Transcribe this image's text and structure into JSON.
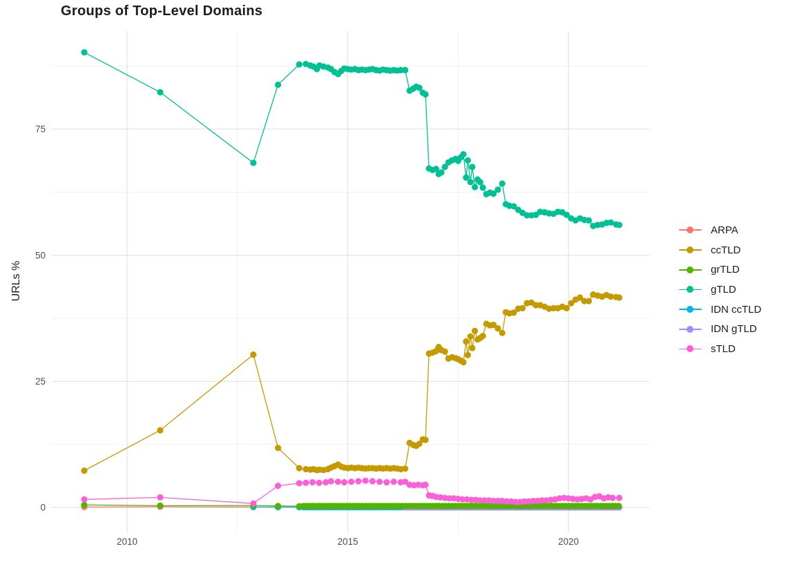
{
  "chart_data": {
    "type": "line",
    "title": "Groups of Top-Level Domains",
    "xlabel": "",
    "ylabel": "URLs %",
    "x_axis": {
      "major_ticks": [
        2010,
        2015,
        2020
      ],
      "minor_ticks": [
        2012.5,
        2017.5
      ],
      "range": [
        2008.3,
        2021.9
      ]
    },
    "y_axis": {
      "major_ticks": [
        0,
        25,
        50,
        75
      ],
      "minor_ticks": [
        12.5,
        37.5,
        62.5,
        87.5
      ],
      "range": [
        -4.5,
        94.5
      ]
    },
    "grid": true,
    "legend_position": "right",
    "colors": {
      "grid_major": "#e3e3e3",
      "grid_minor": "#efefef",
      "tick_label": "#4d4d4d",
      "text": "#1c1c1c"
    },
    "legend": [
      {
        "label": "ARPA",
        "color": "#F8766D"
      },
      {
        "label": "ccTLD",
        "color": "#C49A00"
      },
      {
        "label": "grTLD",
        "color": "#53B400"
      },
      {
        "label": "gTLD",
        "color": "#00C094"
      },
      {
        "label": "IDN ccTLD",
        "color": "#00B6EB"
      },
      {
        "label": "IDN gTLD",
        "color": "#A58AFF"
      },
      {
        "label": "sTLD",
        "color": "#FB61D7"
      }
    ],
    "series": [
      {
        "id": "arpa",
        "name": "ARPA",
        "color": "#F8766D",
        "points": [
          [
            2009.03,
            0.1
          ],
          [
            2010.75,
            0.15
          ],
          [
            2012.86,
            0.1
          ],
          [
            2013.42,
            0.07
          ]
        ],
        "flat_runs": [
          {
            "from": 2014.0,
            "to": 2021.15,
            "step": 0.07,
            "y": 0.05
          }
        ]
      },
      {
        "id": "idn-cctld",
        "name": "IDN ccTLD",
        "color": "#00B6EB",
        "points": [
          [
            2012.86,
            0.1
          ],
          [
            2013.42,
            0.08
          ],
          [
            2013.9,
            0.06
          ]
        ],
        "flat_runs": [
          {
            "from": 2014.0,
            "to": 2021.15,
            "step": 0.07,
            "y": 0.07
          }
        ]
      },
      {
        "id": "idn-gtld",
        "name": "IDN gTLD",
        "color": "#A58AFF",
        "points": [],
        "flat_runs": [
          {
            "from": 2016.3,
            "to": 2021.15,
            "step": 0.05,
            "y": 0.02
          }
        ]
      },
      {
        "id": "grtld",
        "name": "grTLD",
        "color": "#53B400",
        "points": [
          [
            2009.03,
            0.5
          ],
          [
            2010.75,
            0.35
          ],
          [
            2012.86,
            0.4
          ],
          [
            2013.42,
            0.3
          ],
          [
            2013.9,
            0.25
          ]
        ],
        "flat_runs": [
          {
            "from": 2014.0,
            "to": 2021.15,
            "step": 0.07,
            "y": 0.3
          }
        ]
      },
      {
        "id": "gtld",
        "name": "gTLD",
        "color": "#00C094",
        "points": [
          [
            2009.03,
            90.2
          ],
          [
            2010.75,
            82.3
          ],
          [
            2012.86,
            68.3
          ],
          [
            2013.42,
            83.8
          ],
          [
            2013.9,
            87.8
          ],
          [
            2014.05,
            87.9
          ],
          [
            2014.15,
            87.6
          ],
          [
            2014.22,
            87.4
          ],
          [
            2014.3,
            86.9
          ],
          [
            2014.36,
            87.6
          ],
          [
            2014.45,
            87.4
          ],
          [
            2014.55,
            87.2
          ],
          [
            2014.62,
            86.9
          ],
          [
            2014.7,
            86.3
          ],
          [
            2014.78,
            85.9
          ],
          [
            2014.85,
            86.5
          ],
          [
            2014.92,
            87.0
          ],
          [
            2015.0,
            86.9
          ],
          [
            2015.08,
            86.8
          ],
          [
            2015.16,
            86.9
          ],
          [
            2015.24,
            86.7
          ],
          [
            2015.32,
            86.8
          ],
          [
            2015.4,
            86.7
          ],
          [
            2015.48,
            86.8
          ],
          [
            2015.56,
            86.9
          ],
          [
            2015.64,
            86.7
          ],
          [
            2015.72,
            86.6
          ],
          [
            2015.8,
            86.8
          ],
          [
            2015.88,
            86.7
          ],
          [
            2015.96,
            86.6
          ],
          [
            2016.04,
            86.7
          ],
          [
            2016.12,
            86.6
          ],
          [
            2016.2,
            86.7
          ],
          [
            2016.3,
            86.7
          ],
          [
            2016.4,
            82.6
          ],
          [
            2016.48,
            83.0
          ],
          [
            2016.55,
            83.4
          ],
          [
            2016.62,
            83.2
          ],
          [
            2016.7,
            82.2
          ],
          [
            2016.76,
            81.9
          ],
          [
            2016.84,
            67.2
          ],
          [
            2016.92,
            66.9
          ],
          [
            2017.0,
            67.1
          ],
          [
            2017.06,
            66.1
          ],
          [
            2017.12,
            66.4
          ],
          [
            2017.2,
            67.5
          ],
          [
            2017.28,
            68.4
          ],
          [
            2017.36,
            68.8
          ],
          [
            2017.44,
            69.1
          ],
          [
            2017.5,
            68.7
          ],
          [
            2017.56,
            69.4
          ],
          [
            2017.62,
            70.0
          ],
          [
            2017.68,
            65.4
          ],
          [
            2017.72,
            68.8
          ],
          [
            2017.78,
            64.5
          ],
          [
            2017.82,
            67.5
          ],
          [
            2017.88,
            63.5
          ],
          [
            2017.94,
            65.0
          ],
          [
            2018.0,
            64.5
          ],
          [
            2018.06,
            63.4
          ],
          [
            2018.14,
            62.1
          ],
          [
            2018.22,
            62.4
          ],
          [
            2018.3,
            62.2
          ],
          [
            2018.4,
            63.0
          ],
          [
            2018.5,
            64.2
          ],
          [
            2018.58,
            60.1
          ],
          [
            2018.66,
            59.8
          ],
          [
            2018.76,
            59.7
          ],
          [
            2018.86,
            59.0
          ],
          [
            2018.96,
            58.4
          ],
          [
            2019.06,
            57.9
          ],
          [
            2019.16,
            57.9
          ],
          [
            2019.26,
            58.0
          ],
          [
            2019.36,
            58.6
          ],
          [
            2019.46,
            58.5
          ],
          [
            2019.56,
            58.3
          ],
          [
            2019.66,
            58.2
          ],
          [
            2019.76,
            58.6
          ],
          [
            2019.86,
            58.5
          ],
          [
            2019.96,
            58.0
          ],
          [
            2020.06,
            57.3
          ],
          [
            2020.16,
            56.9
          ],
          [
            2020.26,
            57.3
          ],
          [
            2020.36,
            57.0
          ],
          [
            2020.46,
            56.9
          ],
          [
            2020.56,
            55.8
          ],
          [
            2020.66,
            56.0
          ],
          [
            2020.76,
            56.1
          ],
          [
            2020.86,
            56.4
          ],
          [
            2020.96,
            56.5
          ],
          [
            2021.08,
            56.1
          ],
          [
            2021.15,
            56.0
          ]
        ]
      },
      {
        "id": "cctld",
        "name": "ccTLD",
        "color": "#C49A00",
        "points": [
          [
            2009.03,
            7.3
          ],
          [
            2010.75,
            15.3
          ],
          [
            2012.86,
            30.3
          ],
          [
            2013.42,
            11.8
          ],
          [
            2013.9,
            7.8
          ],
          [
            2014.05,
            7.6
          ],
          [
            2014.15,
            7.5
          ],
          [
            2014.22,
            7.6
          ],
          [
            2014.3,
            7.4
          ],
          [
            2014.36,
            7.5
          ],
          [
            2014.45,
            7.4
          ],
          [
            2014.55,
            7.6
          ],
          [
            2014.62,
            7.9
          ],
          [
            2014.7,
            8.2
          ],
          [
            2014.78,
            8.5
          ],
          [
            2014.85,
            8.1
          ],
          [
            2014.92,
            7.9
          ],
          [
            2015.0,
            7.8
          ],
          [
            2015.08,
            7.9
          ],
          [
            2015.16,
            7.8
          ],
          [
            2015.24,
            7.9
          ],
          [
            2015.32,
            7.8
          ],
          [
            2015.4,
            7.7
          ],
          [
            2015.48,
            7.8
          ],
          [
            2015.56,
            7.8
          ],
          [
            2015.64,
            7.7
          ],
          [
            2015.72,
            7.8
          ],
          [
            2015.8,
            7.7
          ],
          [
            2015.88,
            7.8
          ],
          [
            2015.96,
            7.7
          ],
          [
            2016.04,
            7.8
          ],
          [
            2016.12,
            7.7
          ],
          [
            2016.2,
            7.6
          ],
          [
            2016.3,
            7.7
          ],
          [
            2016.4,
            12.8
          ],
          [
            2016.48,
            12.4
          ],
          [
            2016.55,
            12.2
          ],
          [
            2016.62,
            12.6
          ],
          [
            2016.7,
            13.5
          ],
          [
            2016.76,
            13.4
          ],
          [
            2016.84,
            30.5
          ],
          [
            2016.92,
            30.7
          ],
          [
            2017.0,
            31.0
          ],
          [
            2017.06,
            31.8
          ],
          [
            2017.12,
            31.2
          ],
          [
            2017.2,
            30.9
          ],
          [
            2017.28,
            29.5
          ],
          [
            2017.36,
            29.8
          ],
          [
            2017.44,
            29.6
          ],
          [
            2017.5,
            29.4
          ],
          [
            2017.56,
            29.1
          ],
          [
            2017.62,
            28.8
          ],
          [
            2017.68,
            32.9
          ],
          [
            2017.72,
            30.2
          ],
          [
            2017.78,
            33.9
          ],
          [
            2017.82,
            31.6
          ],
          [
            2017.88,
            35.0
          ],
          [
            2017.94,
            33.3
          ],
          [
            2018.0,
            33.6
          ],
          [
            2018.06,
            34.0
          ],
          [
            2018.14,
            36.4
          ],
          [
            2018.22,
            36.1
          ],
          [
            2018.3,
            36.2
          ],
          [
            2018.4,
            35.5
          ],
          [
            2018.5,
            34.6
          ],
          [
            2018.58,
            38.7
          ],
          [
            2018.66,
            38.5
          ],
          [
            2018.76,
            38.6
          ],
          [
            2018.86,
            39.4
          ],
          [
            2018.96,
            39.5
          ],
          [
            2019.06,
            40.5
          ],
          [
            2019.16,
            40.6
          ],
          [
            2019.26,
            40.1
          ],
          [
            2019.36,
            40.1
          ],
          [
            2019.46,
            39.8
          ],
          [
            2019.56,
            39.4
          ],
          [
            2019.66,
            39.5
          ],
          [
            2019.76,
            39.5
          ],
          [
            2019.86,
            39.8
          ],
          [
            2019.96,
            39.5
          ],
          [
            2020.06,
            40.5
          ],
          [
            2020.16,
            41.2
          ],
          [
            2020.26,
            41.6
          ],
          [
            2020.36,
            40.9
          ],
          [
            2020.46,
            40.9
          ],
          [
            2020.56,
            42.2
          ],
          [
            2020.66,
            42.0
          ],
          [
            2020.76,
            41.8
          ],
          [
            2020.86,
            42.1
          ],
          [
            2020.96,
            41.8
          ],
          [
            2021.08,
            41.7
          ],
          [
            2021.15,
            41.6
          ]
        ]
      },
      {
        "id": "stld",
        "name": "sTLD",
        "color": "#FB61D7",
        "points": [
          [
            2009.03,
            1.6
          ],
          [
            2010.75,
            2.0
          ],
          [
            2012.86,
            0.8
          ],
          [
            2013.42,
            4.3
          ],
          [
            2013.9,
            4.8
          ],
          [
            2014.05,
            4.9
          ],
          [
            2014.2,
            5.0
          ],
          [
            2014.35,
            4.9
          ],
          [
            2014.5,
            5.0
          ],
          [
            2014.62,
            5.2
          ],
          [
            2014.78,
            5.1
          ],
          [
            2014.92,
            5.0
          ],
          [
            2015.08,
            5.1
          ],
          [
            2015.24,
            5.2
          ],
          [
            2015.4,
            5.3
          ],
          [
            2015.56,
            5.2
          ],
          [
            2015.72,
            5.1
          ],
          [
            2015.88,
            5.0
          ],
          [
            2016.04,
            5.1
          ],
          [
            2016.2,
            5.0
          ],
          [
            2016.3,
            5.1
          ],
          [
            2016.4,
            4.5
          ],
          [
            2016.5,
            4.4
          ],
          [
            2016.6,
            4.5
          ],
          [
            2016.7,
            4.4
          ],
          [
            2016.76,
            4.5
          ],
          [
            2016.84,
            2.4
          ],
          [
            2016.92,
            2.3
          ],
          [
            2017.0,
            2.1
          ],
          [
            2017.1,
            2.0
          ],
          [
            2017.2,
            1.9
          ],
          [
            2017.3,
            1.8
          ],
          [
            2017.4,
            1.8
          ],
          [
            2017.5,
            1.7
          ],
          [
            2017.6,
            1.6
          ],
          [
            2017.7,
            1.6
          ],
          [
            2017.8,
            1.5
          ],
          [
            2017.9,
            1.5
          ],
          [
            2018.0,
            1.4
          ],
          [
            2018.1,
            1.4
          ],
          [
            2018.2,
            1.4
          ],
          [
            2018.3,
            1.3
          ],
          [
            2018.4,
            1.3
          ],
          [
            2018.5,
            1.3
          ],
          [
            2018.6,
            1.2
          ],
          [
            2018.7,
            1.2
          ],
          [
            2018.8,
            1.1
          ],
          [
            2018.9,
            1.1
          ],
          [
            2019.0,
            1.2
          ],
          [
            2019.1,
            1.2
          ],
          [
            2019.2,
            1.3
          ],
          [
            2019.3,
            1.3
          ],
          [
            2019.4,
            1.4
          ],
          [
            2019.5,
            1.4
          ],
          [
            2019.6,
            1.5
          ],
          [
            2019.7,
            1.6
          ],
          [
            2019.8,
            1.8
          ],
          [
            2019.9,
            1.9
          ],
          [
            2020.0,
            1.8
          ],
          [
            2020.1,
            1.7
          ],
          [
            2020.2,
            1.6
          ],
          [
            2020.3,
            1.7
          ],
          [
            2020.4,
            1.8
          ],
          [
            2020.5,
            1.6
          ],
          [
            2020.6,
            2.1
          ],
          [
            2020.7,
            2.2
          ],
          [
            2020.8,
            1.8
          ],
          [
            2020.9,
            2.0
          ],
          [
            2021.0,
            1.9
          ],
          [
            2021.15,
            1.9
          ]
        ]
      }
    ]
  }
}
